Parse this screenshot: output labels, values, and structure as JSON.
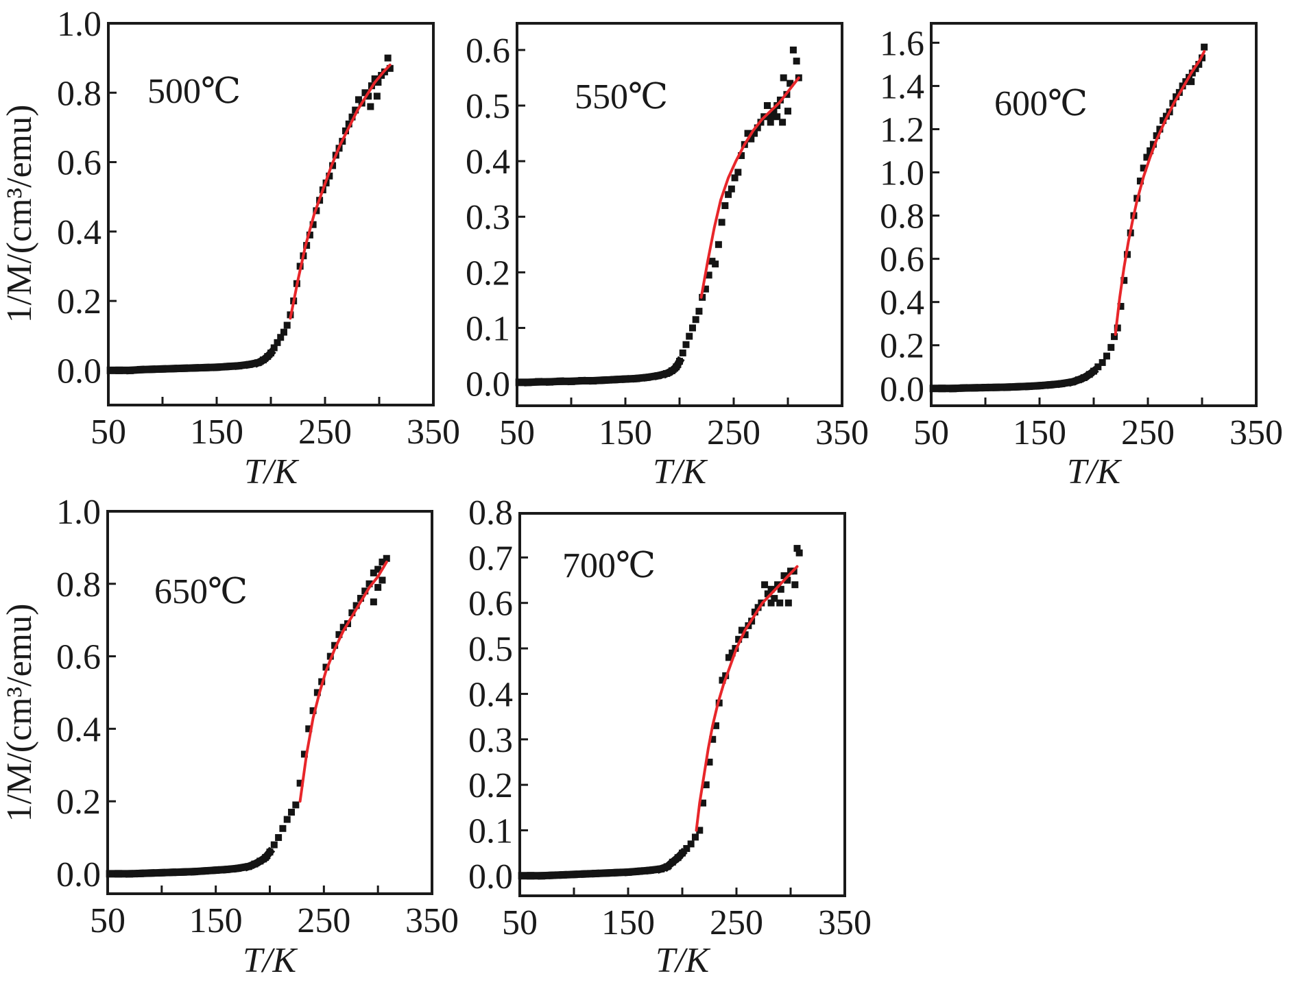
{
  "chart_data": [
    {
      "type": "scatter",
      "title": "500℃",
      "xlabel": "T/K",
      "ylabel": "1/M/(cm³/emu)",
      "xlim": [
        50,
        350
      ],
      "ylim": [
        -0.1,
        1.0
      ],
      "xticks": [
        50,
        150,
        250,
        350
      ],
      "xminor": [
        100,
        200,
        300
      ],
      "yticks": [
        0.0,
        0.2,
        0.4,
        0.6,
        0.8,
        1.0
      ],
      "ytick_labels": [
        "0.0",
        "0.2",
        "0.4",
        "0.6",
        "0.8",
        "1.0"
      ],
      "grid": false,
      "series": [
        {
          "name": "measured",
          "kind": "points",
          "color": "#141414",
          "x": [
            52,
            60,
            70,
            80,
            90,
            100,
            110,
            120,
            130,
            140,
            150,
            160,
            170,
            180,
            188,
            193,
            197,
            200,
            203,
            206,
            209,
            212,
            215,
            218,
            221,
            224,
            227,
            230,
            233,
            236,
            239,
            242,
            245,
            248,
            251,
            254,
            257,
            260,
            263,
            266,
            269,
            272,
            275,
            278,
            281,
            284,
            287,
            290,
            293,
            296,
            299,
            302,
            305,
            308,
            310,
            292,
            298
          ],
          "y": [
            0.0,
            0.0,
            0.0,
            0.002,
            0.003,
            0.004,
            0.005,
            0.006,
            0.007,
            0.008,
            0.009,
            0.011,
            0.013,
            0.017,
            0.022,
            0.03,
            0.04,
            0.05,
            0.065,
            0.08,
            0.095,
            0.11,
            0.13,
            0.16,
            0.2,
            0.25,
            0.3,
            0.33,
            0.36,
            0.39,
            0.42,
            0.46,
            0.49,
            0.52,
            0.54,
            0.56,
            0.59,
            0.62,
            0.64,
            0.66,
            0.69,
            0.71,
            0.73,
            0.75,
            0.78,
            0.77,
            0.8,
            0.79,
            0.82,
            0.84,
            0.83,
            0.85,
            0.86,
            0.9,
            0.87,
            0.76,
            0.79
          ]
        },
        {
          "name": "fit",
          "kind": "line",
          "color": "#e8262a",
          "x": [
            218,
            225,
            232,
            240,
            248,
            256,
            264,
            272,
            280,
            288,
            296,
            304,
            310
          ],
          "y": [
            0.15,
            0.26,
            0.36,
            0.45,
            0.52,
            0.59,
            0.65,
            0.7,
            0.75,
            0.79,
            0.83,
            0.86,
            0.88
          ]
        }
      ]
    },
    {
      "type": "scatter",
      "title": "550℃",
      "xlabel": "T/K",
      "ylabel": "",
      "xlim": [
        50,
        350
      ],
      "ylim": [
        -0.04,
        0.648
      ],
      "xticks": [
        50,
        150,
        250,
        350
      ],
      "xminor": [
        100,
        200,
        300
      ],
      "yticks": [
        0.0,
        0.1,
        0.2,
        0.3,
        0.4,
        0.5,
        0.6
      ],
      "ytick_labels": [
        "0.0",
        "0.1",
        "0.2",
        "0.3",
        "0.4",
        "0.5",
        "0.6"
      ],
      "grid": false,
      "series": [
        {
          "name": "measured",
          "kind": "points",
          "color": "#141414",
          "x": [
            52,
            60,
            70,
            80,
            90,
            100,
            110,
            120,
            130,
            140,
            150,
            160,
            170,
            180,
            188,
            193,
            197,
            200,
            203,
            206,
            209,
            212,
            215,
            218,
            221,
            224,
            227,
            230,
            233,
            236,
            239,
            242,
            245,
            248,
            251,
            254,
            257,
            260,
            263,
            266,
            269,
            272,
            275,
            278,
            281,
            284,
            287,
            290,
            293,
            296,
            299,
            302,
            305,
            308,
            310,
            284,
            290,
            295,
            300
          ],
          "y": [
            0.002,
            0.002,
            0.003,
            0.003,
            0.004,
            0.004,
            0.005,
            0.005,
            0.006,
            0.007,
            0.008,
            0.009,
            0.011,
            0.014,
            0.018,
            0.023,
            0.03,
            0.04,
            0.055,
            0.07,
            0.085,
            0.1,
            0.115,
            0.13,
            0.155,
            0.17,
            0.195,
            0.22,
            0.215,
            0.25,
            0.29,
            0.32,
            0.34,
            0.35,
            0.37,
            0.38,
            0.41,
            0.43,
            0.45,
            0.44,
            0.45,
            0.46,
            0.47,
            0.48,
            0.5,
            0.48,
            0.49,
            0.5,
            0.51,
            0.55,
            0.52,
            0.54,
            0.6,
            0.58,
            0.55,
            0.47,
            0.48,
            0.47,
            0.49
          ]
        },
        {
          "name": "fit",
          "kind": "line",
          "color": "#e8262a",
          "x": [
            220,
            226,
            232,
            238,
            245,
            252,
            260,
            268,
            276,
            284,
            292,
            300,
            310
          ],
          "y": [
            0.155,
            0.22,
            0.28,
            0.33,
            0.37,
            0.4,
            0.43,
            0.455,
            0.475,
            0.49,
            0.505,
            0.525,
            0.55
          ]
        }
      ]
    },
    {
      "type": "scatter",
      "title": "600℃",
      "xlabel": "T/K",
      "ylabel": "",
      "xlim": [
        50,
        350
      ],
      "ylim": [
        -0.08,
        1.69
      ],
      "xticks": [
        50,
        150,
        250,
        350
      ],
      "xminor": [
        100,
        200,
        300
      ],
      "yticks": [
        0.0,
        0.2,
        0.4,
        0.6,
        0.8,
        1.0,
        1.2,
        1.4,
        1.6
      ],
      "ytick_labels": [
        "0.0",
        "0.2",
        "0.4",
        "0.6",
        "0.8",
        "1.0",
        "1.2",
        "1.4",
        "1.6"
      ],
      "grid": false,
      "series": [
        {
          "name": "measured",
          "kind": "points",
          "color": "#141414",
          "x": [
            52,
            60,
            70,
            80,
            90,
            100,
            110,
            120,
            130,
            140,
            150,
            160,
            170,
            180,
            186,
            191,
            196,
            200,
            204,
            208,
            212,
            216,
            219,
            222,
            225,
            228,
            231,
            234,
            237,
            240,
            243,
            246,
            249,
            252,
            255,
            258,
            261,
            264,
            267,
            270,
            273,
            276,
            279,
            282,
            285,
            288,
            291,
            294,
            297,
            300,
            302,
            290
          ],
          "y": [
            0.0,
            0.0,
            0.0,
            0.002,
            0.003,
            0.004,
            0.005,
            0.006,
            0.008,
            0.01,
            0.013,
            0.017,
            0.022,
            0.03,
            0.04,
            0.05,
            0.065,
            0.08,
            0.1,
            0.12,
            0.15,
            0.19,
            0.24,
            0.28,
            0.38,
            0.5,
            0.62,
            0.72,
            0.8,
            0.88,
            0.96,
            1.02,
            1.07,
            1.1,
            1.13,
            1.17,
            1.2,
            1.24,
            1.26,
            1.28,
            1.32,
            1.35,
            1.37,
            1.4,
            1.42,
            1.44,
            1.46,
            1.48,
            1.5,
            1.53,
            1.58,
            1.42
          ]
        },
        {
          "name": "fit",
          "kind": "line",
          "color": "#e8262a",
          "x": [
            220,
            224,
            228,
            232,
            236,
            240,
            246,
            252,
            258,
            266,
            274,
            282,
            290,
            298,
            302
          ],
          "y": [
            0.25,
            0.42,
            0.56,
            0.68,
            0.78,
            0.87,
            0.98,
            1.07,
            1.15,
            1.24,
            1.32,
            1.39,
            1.46,
            1.52,
            1.56
          ]
        }
      ]
    },
    {
      "type": "scatter",
      "title": "650℃",
      "xlabel": "T/K",
      "ylabel": "1/M/(cm³/emu)",
      "xlim": [
        50,
        350
      ],
      "ylim": [
        -0.055,
        1.0
      ],
      "xticks": [
        50,
        150,
        250,
        350
      ],
      "xminor": [
        100,
        200,
        300
      ],
      "yticks": [
        0.0,
        0.2,
        0.4,
        0.6,
        0.8,
        1.0
      ],
      "ytick_labels": [
        "0.0",
        "0.2",
        "0.4",
        "0.6",
        "0.8",
        "1.0"
      ],
      "grid": false,
      "series": [
        {
          "name": "measured",
          "kind": "points",
          "color": "#141414",
          "x": [
            52,
            60,
            70,
            80,
            90,
            100,
            110,
            120,
            130,
            140,
            150,
            160,
            170,
            180,
            186,
            191,
            196,
            200,
            204,
            208,
            212,
            216,
            220,
            224,
            228,
            232,
            236,
            240,
            244,
            248,
            252,
            256,
            260,
            264,
            268,
            272,
            276,
            280,
            284,
            288,
            292,
            296,
            300,
            304,
            308,
            296,
            300,
            304
          ],
          "y": [
            0.0,
            0.0,
            0.0,
            0.001,
            0.002,
            0.003,
            0.004,
            0.005,
            0.006,
            0.008,
            0.01,
            0.012,
            0.015,
            0.02,
            0.027,
            0.035,
            0.045,
            0.06,
            0.08,
            0.1,
            0.125,
            0.15,
            0.17,
            0.19,
            0.25,
            0.33,
            0.4,
            0.45,
            0.5,
            0.53,
            0.57,
            0.6,
            0.63,
            0.66,
            0.68,
            0.69,
            0.72,
            0.74,
            0.76,
            0.78,
            0.8,
            0.83,
            0.84,
            0.86,
            0.87,
            0.75,
            0.79,
            0.81
          ]
        },
        {
          "name": "fit",
          "kind": "line",
          "color": "#e8262a",
          "x": [
            228,
            234,
            240,
            246,
            252,
            260,
            268,
            276,
            284,
            292,
            300,
            308
          ],
          "y": [
            0.2,
            0.33,
            0.43,
            0.5,
            0.56,
            0.62,
            0.67,
            0.71,
            0.75,
            0.79,
            0.82,
            0.86
          ]
        }
      ]
    },
    {
      "type": "scatter",
      "title": "700℃",
      "xlabel": "T/K",
      "ylabel": "",
      "xlim": [
        50,
        350
      ],
      "ylim": [
        -0.044,
        0.797
      ],
      "xticks": [
        50,
        150,
        250,
        350
      ],
      "xminor": [
        100,
        200,
        300
      ],
      "yticks": [
        0.0,
        0.1,
        0.2,
        0.3,
        0.4,
        0.5,
        0.6,
        0.7,
        0.8
      ],
      "ytick_labels": [
        "0.0",
        "0.1",
        "0.2",
        "0.3",
        "0.4",
        "0.5",
        "0.6",
        "0.7",
        "0.8"
      ],
      "grid": false,
      "series": [
        {
          "name": "measured",
          "kind": "points",
          "color": "#141414",
          "x": [
            52,
            60,
            70,
            80,
            90,
            100,
            110,
            120,
            130,
            140,
            150,
            160,
            170,
            180,
            186,
            191,
            196,
            200,
            204,
            208,
            212,
            216,
            219,
            222,
            225,
            228,
            231,
            234,
            237,
            240,
            243,
            246,
            249,
            252,
            255,
            258,
            261,
            264,
            267,
            270,
            273,
            276,
            279,
            282,
            285,
            288,
            291,
            294,
            297,
            300,
            303,
            306,
            308,
            282,
            290,
            298,
            304
          ],
          "y": [
            0.0,
            0.0,
            0.0,
            0.001,
            0.002,
            0.003,
            0.004,
            0.005,
            0.006,
            0.007,
            0.008,
            0.01,
            0.012,
            0.015,
            0.02,
            0.03,
            0.04,
            0.05,
            0.06,
            0.07,
            0.085,
            0.1,
            0.16,
            0.2,
            0.25,
            0.3,
            0.33,
            0.38,
            0.43,
            0.44,
            0.48,
            0.49,
            0.5,
            0.52,
            0.54,
            0.53,
            0.55,
            0.56,
            0.58,
            0.59,
            0.6,
            0.64,
            0.62,
            0.63,
            0.61,
            0.64,
            0.63,
            0.66,
            0.65,
            0.67,
            0.67,
            0.72,
            0.71,
            0.6,
            0.6,
            0.6,
            0.64
          ]
        },
        {
          "name": "fit",
          "kind": "line",
          "color": "#e8262a",
          "x": [
            213,
            216,
            220,
            224,
            228,
            233,
            238,
            244,
            250,
            258,
            266,
            274,
            282,
            290,
            298,
            306
          ],
          "y": [
            0.1,
            0.16,
            0.22,
            0.28,
            0.33,
            0.38,
            0.42,
            0.46,
            0.5,
            0.54,
            0.57,
            0.6,
            0.62,
            0.64,
            0.66,
            0.68
          ]
        }
      ]
    }
  ]
}
